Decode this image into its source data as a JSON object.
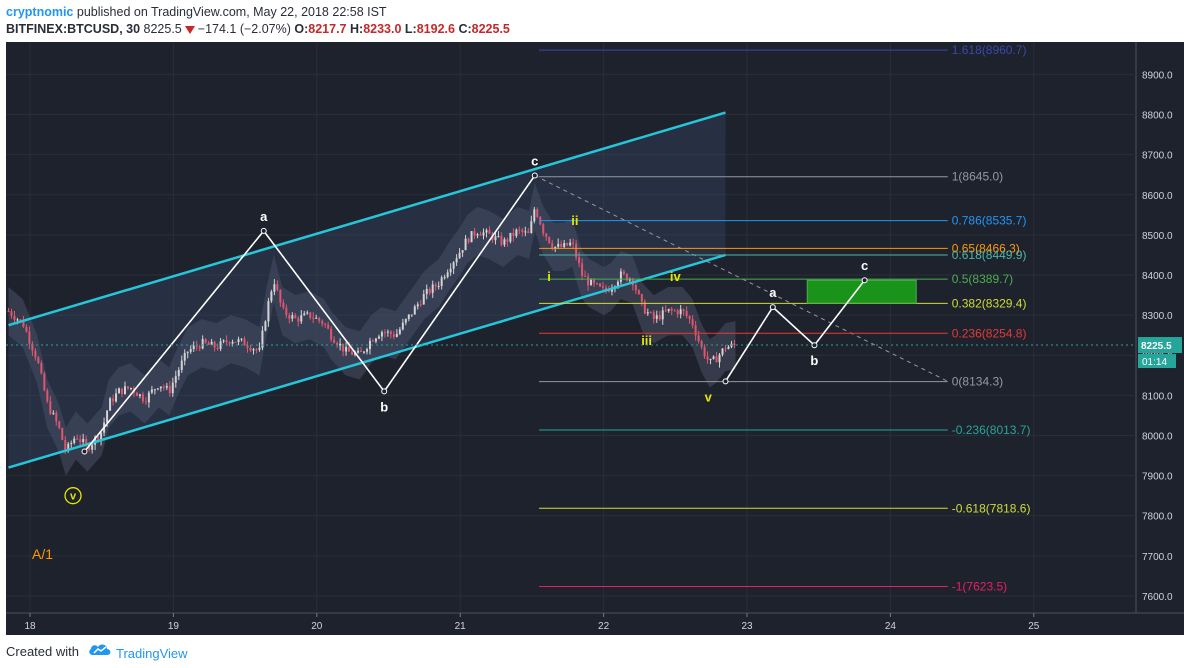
{
  "header": {
    "author": "cryptnomic",
    "published": "published on TradingView.com, May 22, 2018 22:58 IST",
    "symbol": "BITFINEX:BTCUSD, 30",
    "last": "8225.5",
    "change": "−174.1 (−2.07%)",
    "open_label": "O:",
    "open": "8217.7",
    "high_label": "H:",
    "high": "8233.0",
    "low_label": "L:",
    "low": "8192.6",
    "close_label": "C:",
    "close": "8225.5"
  },
  "footer": {
    "created_with": "Created with",
    "brand": "TradingView"
  },
  "colors": {
    "background": "#1e222d",
    "grid": "#2a2e39",
    "channel": "#26c6da",
    "up": "#d3d3d3",
    "down": "#e0566e",
    "band": "#4a5064"
  },
  "chart_data": {
    "type": "candlestick",
    "title": "",
    "symbol": "BITFINEX:BTCUSD",
    "interval": "30",
    "x_ticks": [
      "18",
      "19",
      "20",
      "21",
      "22",
      "23",
      "24",
      "25"
    ],
    "y_ticks": [
      "7600.0",
      "7700.0",
      "7800.0",
      "7900.0",
      "8000.0",
      "8100.0",
      "8200.0",
      "8300.0",
      "8400.0",
      "8500.0",
      "8600.0",
      "8700.0",
      "8800.0",
      "8900.0"
    ],
    "ylim": [
      7570,
      9000
    ],
    "xlim": [
      17.85,
      25.85
    ],
    "price_badge": "8225.5",
    "countdown": "01:14",
    "corner_label": "A/1",
    "price_path": [
      [
        17.85,
        8310
      ],
      [
        17.95,
        8280
      ],
      [
        18.05,
        8190
      ],
      [
        18.12,
        8080
      ],
      [
        18.2,
        8020
      ],
      [
        18.25,
        7960
      ],
      [
        18.32,
        8000
      ],
      [
        18.4,
        7970
      ],
      [
        18.5,
        8010
      ],
      [
        18.55,
        8080
      ],
      [
        18.62,
        8110
      ],
      [
        18.7,
        8120
      ],
      [
        18.8,
        8090
      ],
      [
        18.9,
        8130
      ],
      [
        18.97,
        8110
      ],
      [
        19.03,
        8160
      ],
      [
        19.1,
        8210
      ],
      [
        19.2,
        8230
      ],
      [
        19.3,
        8220
      ],
      [
        19.4,
        8240
      ],
      [
        19.5,
        8230
      ],
      [
        19.6,
        8210
      ],
      [
        19.65,
        8310
      ],
      [
        19.7,
        8390
      ],
      [
        19.76,
        8310
      ],
      [
        19.85,
        8290
      ],
      [
        19.95,
        8300
      ],
      [
        20.05,
        8280
      ],
      [
        20.1,
        8250
      ],
      [
        20.2,
        8210
      ],
      [
        20.3,
        8200
      ],
      [
        20.38,
        8240
      ],
      [
        20.45,
        8260
      ],
      [
        20.55,
        8250
      ],
      [
        20.65,
        8300
      ],
      [
        20.75,
        8350
      ],
      [
        20.85,
        8380
      ],
      [
        20.92,
        8420
      ],
      [
        21.0,
        8460
      ],
      [
        21.05,
        8490
      ],
      [
        21.12,
        8510
      ],
      [
        21.2,
        8500
      ],
      [
        21.3,
        8480
      ],
      [
        21.4,
        8510
      ],
      [
        21.48,
        8500
      ],
      [
        21.52,
        8570
      ],
      [
        21.58,
        8510
      ],
      [
        21.65,
        8470
      ],
      [
        21.72,
        8470
      ],
      [
        21.78,
        8480
      ],
      [
        21.85,
        8400
      ],
      [
        21.9,
        8380
      ],
      [
        22.0,
        8360
      ],
      [
        22.05,
        8370
      ],
      [
        22.12,
        8400
      ],
      [
        22.2,
        8390
      ],
      [
        22.27,
        8320
      ],
      [
        22.35,
        8290
      ],
      [
        22.45,
        8310
      ],
      [
        22.55,
        8310
      ],
      [
        22.62,
        8280
      ],
      [
        22.68,
        8220
      ],
      [
        22.74,
        8180
      ],
      [
        22.78,
        8190
      ],
      [
        22.85,
        8220
      ],
      [
        22.92,
        8225
      ]
    ],
    "channel": [
      {
        "name": "upper",
        "points": [
          [
            17.85,
            8275
          ],
          [
            22.85,
            8805
          ]
        ]
      },
      {
        "name": "lower",
        "points": [
          [
            17.85,
            7920
          ],
          [
            22.85,
            8450
          ]
        ]
      }
    ],
    "fibonacci": [
      {
        "ratio": "1.618",
        "value": 8960.7,
        "label": "1.618(8960.7)",
        "color": "#3949ab"
      },
      {
        "ratio": "1",
        "value": 8645.0,
        "label": "1(8645.0)",
        "color": "#9598a1"
      },
      {
        "ratio": "0.786",
        "value": 8535.7,
        "label": "0.786(8535.7)",
        "color": "#2196f3"
      },
      {
        "ratio": "0.65",
        "value": 8466.3,
        "label": "0.65(8466.3)",
        "color": "#ff9800"
      },
      {
        "ratio": "0.618",
        "value": 8449.9,
        "label": "0.618(8449.9)",
        "color": "#4db6ac"
      },
      {
        "ratio": "0.5",
        "value": 8389.7,
        "label": "0.5(8389.7)",
        "color": "#4caf50"
      },
      {
        "ratio": "0.382",
        "value": 8329.4,
        "label": "0.382(8329.4)",
        "color": "#cddc39"
      },
      {
        "ratio": "0.236",
        "value": 8254.8,
        "label": "0.236(8254.8)",
        "color": "#e53935"
      },
      {
        "ratio": "0",
        "value": 8134.3,
        "label": "0(8134.3)",
        "color": "#9598a1"
      },
      {
        "ratio": "-0.236",
        "value": 8013.7,
        "label": "-0.236(8013.7)",
        "color": "#26a69a"
      },
      {
        "ratio": "-0.618",
        "value": 7818.6,
        "label": "-0.618(7818.6)",
        "color": "#cddc39"
      },
      {
        "ratio": "-1",
        "value": 7623.5,
        "label": "-1(7623.5)",
        "color": "#e91e63"
      }
    ],
    "waves": [
      {
        "name": "abc-left",
        "points": [
          [
            18.38,
            7960
          ],
          [
            19.63,
            8510
          ],
          [
            20.47,
            8110
          ],
          [
            21.52,
            8648
          ]
        ]
      },
      {
        "name": "abc-projection",
        "points": [
          [
            22.85,
            8135
          ],
          [
            23.18,
            8320
          ],
          [
            23.47,
            8225
          ],
          [
            23.82,
            8387
          ]
        ]
      }
    ],
    "dashed_trend": [
      [
        21.52,
        8648
      ],
      [
        24.4,
        8135
      ]
    ],
    "target_zone": {
      "x0": 23.42,
      "x1": 24.18,
      "y0": 8330,
      "y1": 8387
    },
    "wave_labels": [
      {
        "text": "a",
        "x": 19.63,
        "y": 8510,
        "color": "#ffffff",
        "pos": "above"
      },
      {
        "text": "b",
        "x": 20.47,
        "y": 8110,
        "color": "#ffffff",
        "pos": "below"
      },
      {
        "text": "c",
        "x": 21.52,
        "y": 8648,
        "color": "#ffffff",
        "pos": "above"
      },
      {
        "text": "i",
        "x": 21.62,
        "y": 8395,
        "color": "#e6e600",
        "pos": "center"
      },
      {
        "text": "ii",
        "x": 21.8,
        "y": 8500,
        "color": "#e6e600",
        "pos": "above"
      },
      {
        "text": "iii",
        "x": 22.3,
        "y": 8235,
        "color": "#e6e600",
        "pos": "center"
      },
      {
        "text": "iv",
        "x": 22.5,
        "y": 8395,
        "color": "#e6e600",
        "pos": "center"
      },
      {
        "text": "v",
        "x": 22.73,
        "y": 8135,
        "color": "#e6e600",
        "pos": "below"
      },
      {
        "text": "a",
        "x": 23.18,
        "y": 8320,
        "color": "#ffffff",
        "pos": "above"
      },
      {
        "text": "b",
        "x": 23.47,
        "y": 8225,
        "color": "#ffffff",
        "pos": "below"
      },
      {
        "text": "c",
        "x": 23.82,
        "y": 8387,
        "color": "#ffffff",
        "pos": "above"
      }
    ],
    "circled_label": {
      "text": "v",
      "x": 18.3,
      "y": 7850,
      "color": "#e6e600"
    }
  }
}
